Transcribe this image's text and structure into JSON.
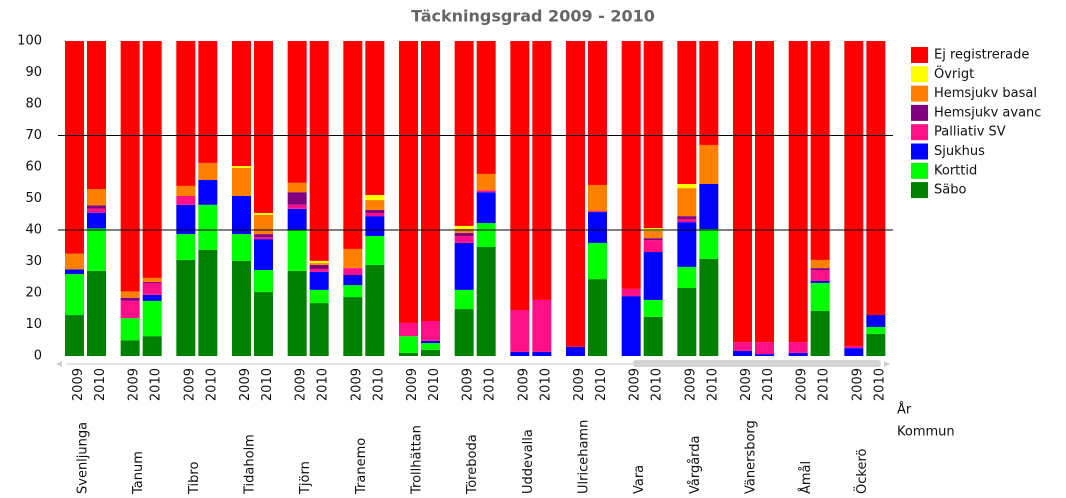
{
  "chart_data": {
    "type": "stacked_bar",
    "title": "Täckningsgrad 2009 - 2010",
    "categories": [
      "2009",
      "2010",
      "2009",
      "2010",
      "2009",
      "2010",
      "2009",
      "2010",
      "2009",
      "2010",
      "2009",
      "2010",
      "2009",
      "2010",
      "2009",
      "2010",
      "2009",
      "2010",
      "2009",
      "2010",
      "2009",
      "2010",
      "2009",
      "2010",
      "2009",
      "2010",
      "2009",
      "2010",
      "2009",
      "2010"
    ],
    "groups": [
      "Svenljunga",
      "Tanum",
      "Tibro",
      "Tidaholm",
      "Tjörn",
      "Tranemo",
      "Trollhättan",
      "Töreboda",
      "Uddevalla",
      "Ulricehamn",
      "Vara",
      "Vårgårda",
      "Vänersborg",
      "Åmål",
      "Öckerö"
    ],
    "x_axis_labels": [
      "År",
      "Kommun"
    ],
    "ylim": [
      0,
      100
    ],
    "yticks": [
      0,
      10,
      20,
      30,
      40,
      50,
      60,
      70,
      80,
      90,
      100
    ],
    "reference_lines": [
      40,
      70
    ],
    "legend_position": "right",
    "series": [
      {
        "name": "Säbo",
        "color": "#008000",
        "values": [
          13,
          27,
          5,
          6.3,
          30.5,
          33.7,
          30.2,
          20.3,
          27,
          16.8,
          18.7,
          28.9,
          1,
          2,
          14.9,
          34.6,
          0,
          0,
          0,
          24.4,
          0,
          12.4,
          21.6,
          30.8,
          0,
          0,
          0,
          14.3,
          0,
          7
        ]
      },
      {
        "name": "Korttid",
        "color": "#00ff00",
        "values": [
          13,
          13.5,
          7,
          11.2,
          8.2,
          14.3,
          8.5,
          7,
          13,
          4.2,
          3.8,
          9.2,
          5.3,
          2.1,
          6.1,
          7.6,
          0,
          0,
          0,
          11.5,
          0,
          5.4,
          6.7,
          9.5,
          0,
          0,
          0,
          8.9,
          0,
          2.2
        ]
      },
      {
        "name": "Sjukhus",
        "color": "#0000ff",
        "values": [
          1.5,
          5,
          0,
          1.9,
          9.3,
          7.9,
          12.1,
          9.8,
          6.7,
          5.7,
          3.2,
          6.3,
          0,
          0.7,
          14.9,
          9.8,
          1.3,
          1.3,
          2.9,
          9.8,
          19,
          15.2,
          14.2,
          14.3,
          1.6,
          0.6,
          1,
          0.6,
          2.5,
          3.8
        ]
      },
      {
        "name": "Palliativ SV",
        "color": "#ff1088",
        "values": [
          0,
          1.3,
          5.5,
          3.8,
          2.8,
          0,
          0,
          0.6,
          1.3,
          0.9,
          2.2,
          1,
          4.2,
          6.3,
          2.2,
          0.6,
          13.3,
          16.5,
          0,
          0.3,
          2.3,
          3.8,
          1,
          0,
          2.8,
          3.8,
          3.4,
          3.5,
          0.7,
          0
        ]
      },
      {
        "name": "Hemsjukv avanc",
        "color": "#800080",
        "values": [
          0,
          1,
          1,
          0.3,
          0,
          0,
          0,
          1,
          4,
          1.3,
          0,
          1,
          0,
          0,
          1,
          0,
          0,
          0,
          0,
          0,
          0,
          0.6,
          0.9,
          0,
          0,
          0,
          0,
          0.6,
          0,
          0
        ]
      },
      {
        "name": "Hemsjukv basal",
        "color": "#ff8000",
        "values": [
          5,
          5.2,
          2,
          1.3,
          3.2,
          5.4,
          8.9,
          6.1,
          3,
          0.6,
          6.1,
          3.1,
          0,
          0,
          1.2,
          5.2,
          0,
          0,
          0,
          8.3,
          0,
          2.3,
          8.9,
          12.4,
          0,
          0,
          0,
          2.6,
          0,
          0
        ]
      },
      {
        "name": "Övrigt",
        "color": "#ffff00",
        "values": [
          0,
          0,
          0,
          0,
          0,
          0,
          0.6,
          0.6,
          0,
          0.7,
          0,
          1.6,
          0,
          0,
          1,
          0,
          0,
          0,
          0,
          0,
          0,
          0.9,
          1.3,
          0,
          0,
          0,
          0,
          0,
          0,
          0
        ]
      },
      {
        "name": "Ej registrerade",
        "color": "#ff0000",
        "values": [
          67.5,
          47,
          79.5,
          75.2,
          46,
          38.7,
          39.7,
          54.6,
          45,
          69.8,
          66,
          48.9,
          89.5,
          88.9,
          58.7,
          42.2,
          85.4,
          82.2,
          97.1,
          45.7,
          78.7,
          59.4,
          45.4,
          33,
          95.6,
          95.6,
          95.6,
          69.5,
          96.8,
          87
        ]
      }
    ]
  }
}
